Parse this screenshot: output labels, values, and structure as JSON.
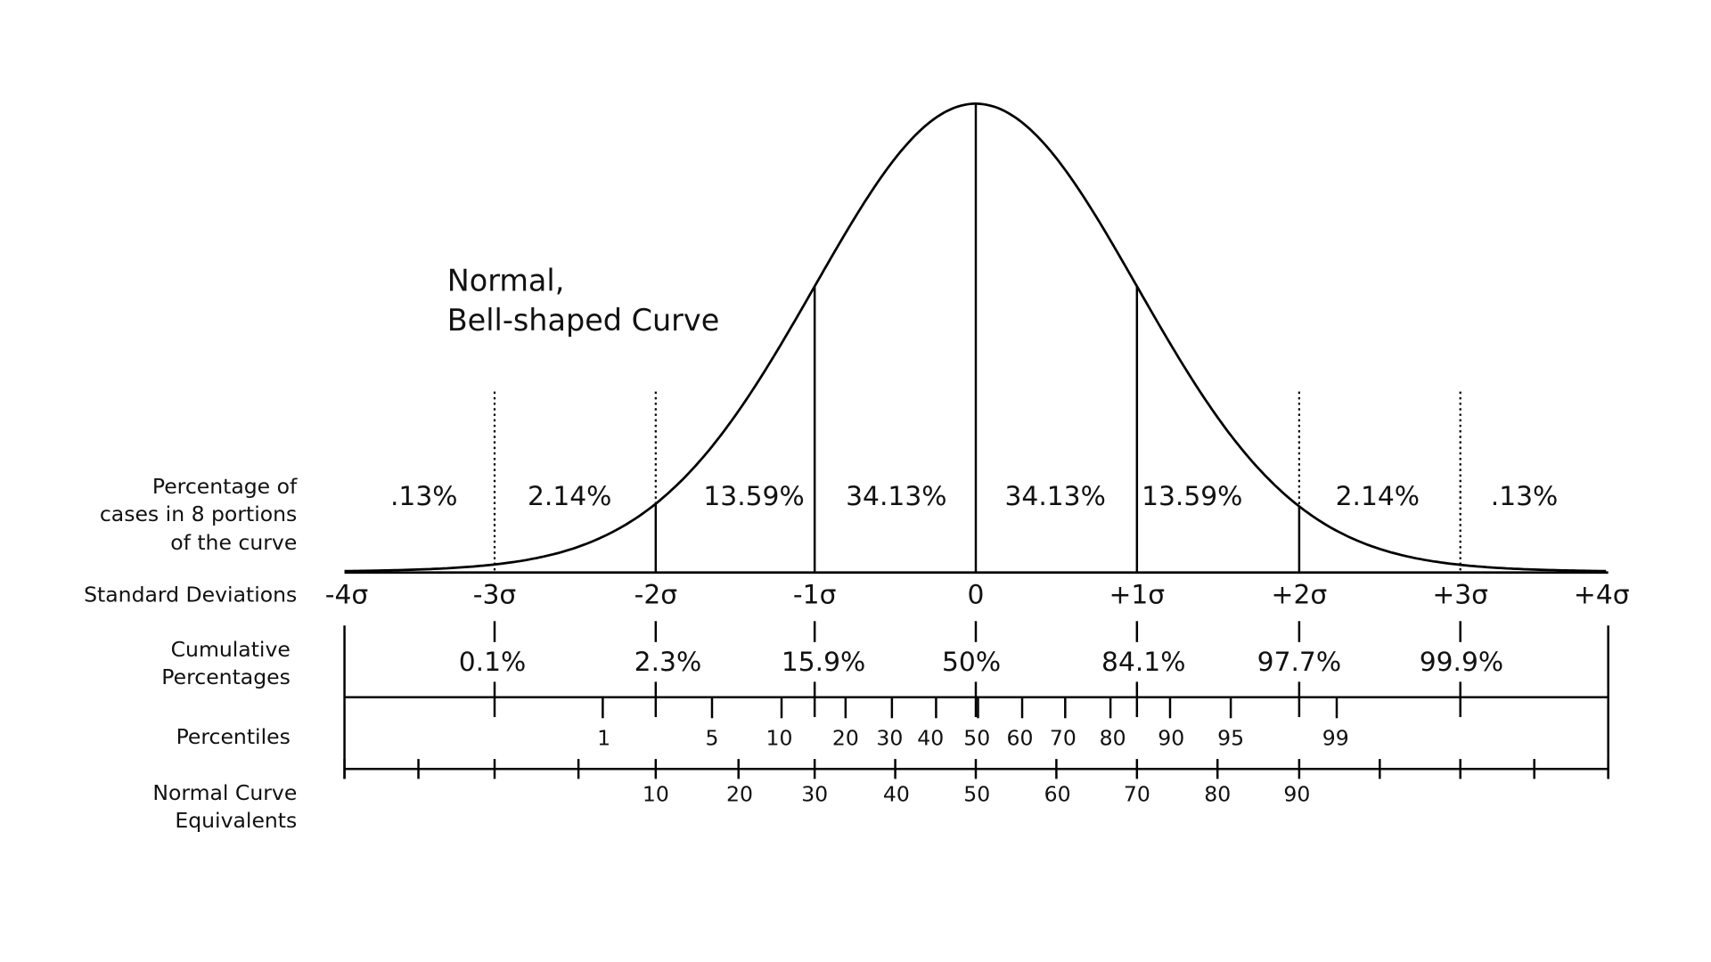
{
  "title": [
    "Normal,",
    "Bell-shaped Curve"
  ],
  "row_labels": {
    "portions": [
      "Percentage of",
      "cases in 8 portions",
      "of the curve"
    ],
    "standard_deviations": [
      "Standard Deviations"
    ],
    "cumulative": [
      "Cumulative",
      "Percentages"
    ],
    "percentiles": [
      "Percentiles"
    ],
    "nce": [
      "Normal Curve",
      "Equivalents"
    ]
  },
  "portions": [
    ".13%",
    "2.14%",
    "13.59%",
    "34.13%",
    "34.13%",
    "13.59%",
    "2.14%",
    ".13%"
  ],
  "standard_deviations": [
    "-4σ",
    "-3σ",
    "-2σ",
    "-1σ",
    "0",
    "+1σ",
    "+2σ",
    "+3σ",
    "+4σ"
  ],
  "cumulative": [
    "0.1%",
    "2.3%",
    "15.9%",
    "50%",
    "84.1%",
    "97.7%",
    "99.9%"
  ],
  "percentiles": [
    "1",
    "5",
    "10",
    "20",
    "30",
    "40",
    "50",
    "60",
    "70",
    "80",
    "90",
    "95",
    "99"
  ],
  "nce": [
    "10",
    "20",
    "30",
    "40",
    "50",
    "60",
    "70",
    "80",
    "90"
  ]
}
